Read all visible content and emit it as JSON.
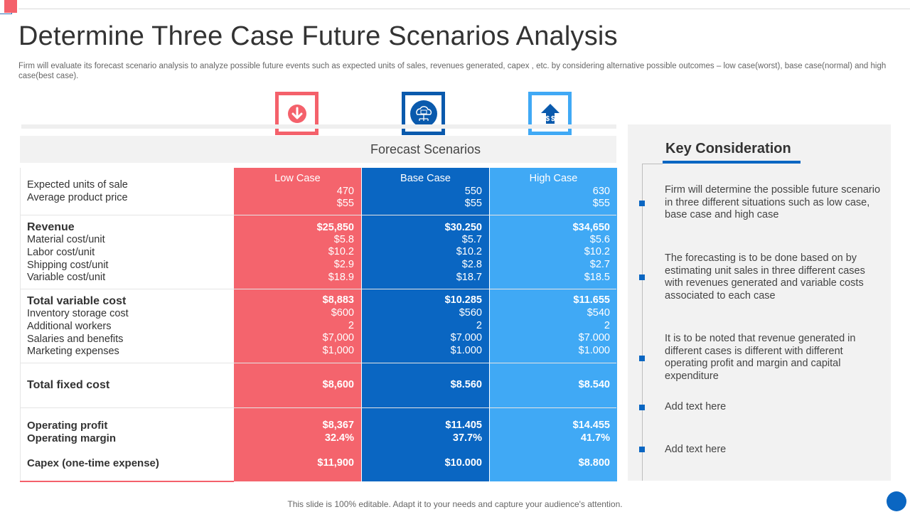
{
  "title": "Determine Three Case Future Scenarios Analysis",
  "subtitle": "Firm will evaluate its forecast scenario analysis to analyze possible future events such as expected units of sales, revenues generated, capex , etc. by considering alternative possible outcomes – low case(worst), base case(normal) and high case(best case).",
  "icons": {
    "low": "arrow-down-icon",
    "base": "cloud-network-icon",
    "high": "money-arrow-up-icon"
  },
  "colors": {
    "low": "#f4646d",
    "base": "#0a66c2",
    "high": "#40a9f5"
  },
  "table": {
    "header": "Forecast Scenarios",
    "columns": [
      "Low Case",
      "Base Case",
      "High  Case"
    ],
    "rows": [
      {
        "label": "Expected units of sale",
        "values": [
          "470",
          "550",
          "630"
        ]
      },
      {
        "label": "Average product price",
        "values": [
          "$55",
          "$55",
          "$55"
        ]
      },
      {
        "label": "Revenue",
        "values": [
          "$25,850",
          "$30.250",
          "$34,650"
        ]
      },
      {
        "label": "Material cost/unit",
        "values": [
          "$5.8",
          "$5.7",
          "$5.6"
        ]
      },
      {
        "label": "Labor cost/unit",
        "values": [
          "$10.2",
          "$10.2",
          "$10.2"
        ]
      },
      {
        "label": "Shipping cost/unit",
        "values": [
          "$2.9",
          "$2.8",
          "$2.7"
        ]
      },
      {
        "label": "Variable cost/unit",
        "values": [
          "$18.9",
          "$18.7",
          "$18.5"
        ]
      },
      {
        "label": "Total variable cost",
        "values": [
          "$8,883",
          "$10.285",
          "$11.655"
        ]
      },
      {
        "label": "Inventory storage cost",
        "values": [
          "$600",
          "$560",
          "$540"
        ]
      },
      {
        "label": "Additional workers",
        "values": [
          "2",
          "2",
          "2"
        ]
      },
      {
        "label": "Salaries and benefits",
        "values": [
          "$7,000",
          "$7.000",
          "$7.000"
        ]
      },
      {
        "label": "Marketing expenses",
        "values": [
          "$1,000",
          "$1.000",
          "$1.000"
        ]
      },
      {
        "label": "Total fixed cost",
        "values": [
          "$8,600",
          "$8.560",
          "$8.540"
        ]
      },
      {
        "label": "Operating profit",
        "values": [
          "$8,367",
          "$11.405",
          "$14.455"
        ]
      },
      {
        "label": "Operating margin",
        "values": [
          "32.4%",
          "37.7%",
          "41.7%"
        ]
      },
      {
        "label": "Capex (one-time expense)",
        "values": [
          "$11,900",
          "$10.000",
          "$8.800"
        ]
      }
    ]
  },
  "key_consideration": {
    "title": "Key Consideration",
    "items": [
      "Firm will determine the possible future scenario in three different situations such as low case, base case and high case",
      "The forecasting is to be done based on by estimating unit sales in three different cases with revenues generated  and variable costs associated to each case",
      "It is to be noted that revenue generated in different cases is different with different operating profit and margin and capital expenditure",
      "Add text here",
      "Add text here"
    ]
  },
  "footer": "This slide is 100% editable. Adapt it to your needs and capture your audience's attention."
}
